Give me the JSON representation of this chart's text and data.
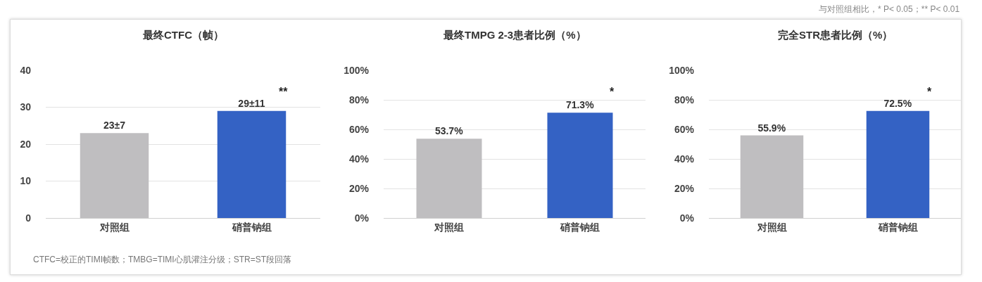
{
  "chart_data": [
    {
      "type": "bar",
      "title": "最终CTFC（帧）",
      "categories": [
        "对照组",
        "硝普钠组"
      ],
      "values": [
        23,
        29
      ],
      "value_labels": [
        "23±7",
        "29±11"
      ],
      "colors": [
        "#bfbec0",
        "#3462c4"
      ],
      "ylim": [
        0,
        40
      ],
      "yticks": [
        0,
        10,
        20,
        30,
        40
      ],
      "grid": "y",
      "annotations": [
        "**",
        "CTFC=校正的TIMI帧数；TMBG=TIMI心肌灌注分级；STR=ST段回落"
      ]
    },
    {
      "type": "bar",
      "title": "最终TMPG 2-3患者比例（%）",
      "categories": [
        "对照组",
        "硝普钠组"
      ],
      "values": [
        53.7,
        71.3
      ],
      "value_labels": [
        "53.7%",
        "71.3%"
      ],
      "colors": [
        "#bfbec0",
        "#3462c4"
      ],
      "ylim": [
        0,
        100
      ],
      "yticks": [
        {
          "value": 0,
          "label": "0%"
        },
        {
          "value": 20,
          "label": "20%"
        },
        {
          "value": 40,
          "label": "40%"
        },
        {
          "value": 60,
          "label": "60%"
        },
        {
          "value": 80,
          "label": "80%"
        },
        {
          "value": 100,
          "label": "100%"
        }
      ],
      "grid": "y",
      "annotations": [
        "*"
      ]
    },
    {
      "type": "bar",
      "title": "完全STR患者比例（%）",
      "categories": [
        "对照组",
        "硝普钠组"
      ],
      "values": [
        55.9,
        72.5
      ],
      "value_labels": [
        "55.9%",
        "72.5%"
      ],
      "colors": [
        "#bfbec0",
        "#3462c4"
      ],
      "ylim": [
        0,
        100
      ],
      "yticks": [
        {
          "value": 0,
          "label": "0%"
        },
        {
          "value": 20,
          "label": "20%"
        },
        {
          "value": 40,
          "label": "40%"
        },
        {
          "value": 60,
          "label": "60%"
        },
        {
          "value": 80,
          "label": "80%"
        },
        {
          "value": 100,
          "label": "100%"
        }
      ],
      "grid": "y",
      "annotations": [
        "*",
        "与对照组相比，* P< 0.05；** P< 0.01"
      ]
    }
  ]
}
